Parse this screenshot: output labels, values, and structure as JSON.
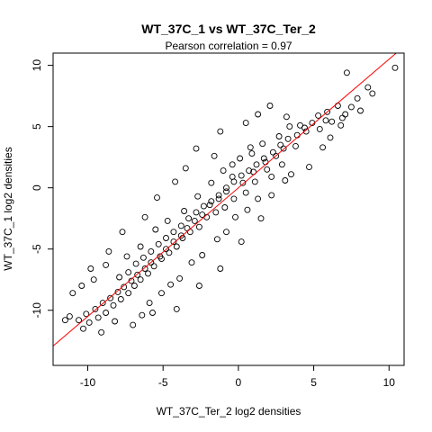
{
  "chart_data": {
    "type": "scatter",
    "title": "WT_37C_1 vs WT_37C_Ter_2",
    "subtitle": "Pearson correlation =  0.97",
    "xlabel": "WT_37C_Ter_2 log2 densities",
    "ylabel": "WT_37C_1 log2 densities",
    "xlim": [
      -12.3,
      11.0
    ],
    "ylim": [
      -14.5,
      11.0
    ],
    "x_ticks": [
      -10,
      -5,
      0,
      5,
      10
    ],
    "y_ticks": [
      -10,
      -5,
      0,
      5,
      10
    ],
    "x_tick_labels": [
      "-10",
      "-5",
      "0",
      "5",
      "10"
    ],
    "y_tick_labels": [
      "-10",
      "-5",
      "0",
      "5",
      "10"
    ],
    "grid": false,
    "legend": "none",
    "marker": "open-circle",
    "point_color": "#000000",
    "fit_line": {
      "intercept": 0.0,
      "slope": 1.05,
      "color": "#ff0000"
    },
    "pearson_r": 0.97,
    "points": [
      [
        10.4,
        9.8
      ],
      [
        7.2,
        9.4
      ],
      [
        8.6,
        8.2
      ],
      [
        8.9,
        7.7
      ],
      [
        7.9,
        7.3
      ],
      [
        7.5,
        6.6
      ],
      [
        8.1,
        6.3
      ],
      [
        7.1,
        6.0
      ],
      [
        6.6,
        6.7
      ],
      [
        6.9,
        5.7
      ],
      [
        6.2,
        5.4
      ],
      [
        5.8,
        5.5
      ],
      [
        5.4,
        4.8
      ],
      [
        6.8,
        5.1
      ],
      [
        4.5,
        4.6
      ],
      [
        4.1,
        5.1
      ],
      [
        3.2,
        5.8
      ],
      [
        2.1,
        6.7
      ],
      [
        1.3,
        6.0
      ],
      [
        0.5,
        5.3
      ],
      [
        -1.2,
        4.6
      ],
      [
        3.8,
        3.4
      ],
      [
        3.0,
        3.2
      ],
      [
        2.5,
        2.6
      ],
      [
        1.8,
        2.1
      ],
      [
        2.2,
        0.9
      ],
      [
        1.0,
        1.3
      ],
      [
        0.3,
        0.4
      ],
      [
        -0.4,
        0.9
      ],
      [
        -0.8,
        -0.3
      ],
      [
        -1.3,
        -0.9
      ],
      [
        -1.9,
        -1.4
      ],
      [
        -2.4,
        -2.2
      ],
      [
        -2.9,
        -2.7
      ],
      [
        -3.4,
        -3.3
      ],
      [
        -3.8,
        -3.9
      ],
      [
        -4.3,
        -4.4
      ],
      [
        -4.8,
        -5.0
      ],
      [
        -5.2,
        -5.6
      ],
      [
        -5.8,
        -6.1
      ],
      [
        -6.2,
        -6.6
      ],
      [
        -6.7,
        -7.1
      ],
      [
        -7.1,
        -7.6
      ],
      [
        -7.6,
        -8.1
      ],
      [
        -8.0,
        -8.5
      ],
      [
        -8.5,
        -9.0
      ],
      [
        -9.0,
        -9.4
      ],
      [
        -9.5,
        -9.9
      ],
      [
        -10.1,
        -10.3
      ],
      [
        -10.6,
        -10.8
      ],
      [
        -11.5,
        -10.8
      ],
      [
        -11.2,
        -10.5
      ],
      [
        -10.3,
        -11.5
      ],
      [
        -9.1,
        -11.8
      ],
      [
        -8.2,
        -10.9
      ],
      [
        -7.0,
        -11.2
      ],
      [
        -6.4,
        -10.4
      ],
      [
        -5.9,
        -9.4
      ],
      [
        -5.1,
        -8.6
      ],
      [
        -4.5,
        -7.9
      ],
      [
        -3.9,
        -7.4
      ],
      [
        -3.1,
        -6.1
      ],
      [
        -2.4,
        -5.5
      ],
      [
        -1.4,
        -4.2
      ],
      [
        -0.8,
        -3.6
      ],
      [
        -0.2,
        -2.4
      ],
      [
        0.6,
        -1.8
      ],
      [
        1.3,
        -0.9
      ],
      [
        2.2,
        -0.6
      ],
      [
        3.1,
        0.6
      ],
      [
        -11.0,
        -8.6
      ],
      [
        -10.4,
        -8.0
      ],
      [
        -9.6,
        -7.5
      ],
      [
        -8.8,
        -6.3
      ],
      [
        -7.4,
        -5.6
      ],
      [
        -6.5,
        -4.8
      ],
      [
        -5.5,
        -3.4
      ],
      [
        -4.7,
        -2.7
      ],
      [
        -3.6,
        -1.9
      ],
      [
        -2.7,
        -0.7
      ],
      [
        -1.8,
        0.4
      ],
      [
        -1.0,
        1.4
      ],
      [
        0.1,
        2.4
      ],
      [
        0.8,
        3.3
      ],
      [
        -4.2,
        0.5
      ],
      [
        -5.4,
        -0.8
      ],
      [
        -6.2,
        -2.4
      ],
      [
        -7.7,
        -3.6
      ],
      [
        -8.6,
        -5.2
      ],
      [
        -9.8,
        -6.6
      ],
      [
        4.7,
        1.7
      ],
      [
        5.6,
        3.3
      ],
      [
        6.1,
        4.1
      ],
      [
        3.5,
        1.1
      ],
      [
        1.5,
        -2.5
      ],
      [
        0.2,
        -4.4
      ],
      [
        -1.2,
        -6.6
      ],
      [
        -2.6,
        -8.0
      ],
      [
        -4.1,
        -9.9
      ],
      [
        -5.7,
        -10.2
      ],
      [
        3.4,
        5.0
      ],
      [
        2.7,
        4.2
      ],
      [
        1.6,
        3.6
      ],
      [
        0.9,
        2.8
      ],
      [
        -0.4,
        1.9
      ],
      [
        -1.6,
        2.6
      ],
      [
        -2.8,
        3.2
      ],
      [
        -3.5,
        1.6
      ],
      [
        2.9,
        1.9
      ],
      [
        1.9,
        1.5
      ],
      [
        1.1,
        0.5
      ],
      [
        0.5,
        -0.4
      ],
      [
        -0.3,
        -0.9
      ],
      [
        -0.9,
        -1.6
      ],
      [
        -1.5,
        -2.0
      ],
      [
        -2.1,
        -2.4
      ],
      [
        -2.6,
        -3.2
      ],
      [
        -3.2,
        -3.6
      ],
      [
        -3.7,
        -4.1
      ],
      [
        -4.1,
        -4.8
      ],
      [
        -4.6,
        -5.3
      ],
      [
        -5.1,
        -5.8
      ],
      [
        -5.6,
        -6.4
      ],
      [
        -6.0,
        -7.0
      ],
      [
        -6.5,
        -7.5
      ],
      [
        -6.9,
        -8.0
      ],
      [
        -7.3,
        -8.6
      ],
      [
        -7.8,
        -9.1
      ],
      [
        -8.3,
        -9.6
      ],
      [
        -8.8,
        -10.2
      ],
      [
        -9.3,
        -10.6
      ],
      [
        -9.9,
        -11.0
      ],
      [
        -7.9,
        -7.3
      ],
      [
        -7.3,
        -6.9
      ],
      [
        -6.8,
        -6.2
      ],
      [
        -6.3,
        -5.7
      ],
      [
        -5.8,
        -5.2
      ],
      [
        -5.3,
        -4.6
      ],
      [
        -4.8,
        -4.1
      ],
      [
        -4.3,
        -3.6
      ],
      [
        -3.8,
        -3.1
      ],
      [
        -3.3,
        -2.5
      ],
      [
        -2.8,
        -2.0
      ],
      [
        -2.3,
        -1.5
      ],
      [
        -1.8,
        -1.1
      ],
      [
        -1.3,
        -0.6
      ],
      [
        -0.8,
        0.0
      ],
      [
        -0.3,
        0.5
      ],
      [
        0.2,
        1.0
      ],
      [
        0.7,
        1.4
      ],
      [
        1.2,
        1.9
      ],
      [
        1.7,
        2.4
      ],
      [
        2.3,
        2.9
      ],
      [
        2.8,
        3.5
      ],
      [
        3.3,
        4.0
      ],
      [
        3.9,
        4.3
      ],
      [
        4.4,
        4.9
      ],
      [
        4.9,
        5.3
      ],
      [
        5.3,
        5.9
      ],
      [
        5.9,
        6.2
      ]
    ]
  }
}
